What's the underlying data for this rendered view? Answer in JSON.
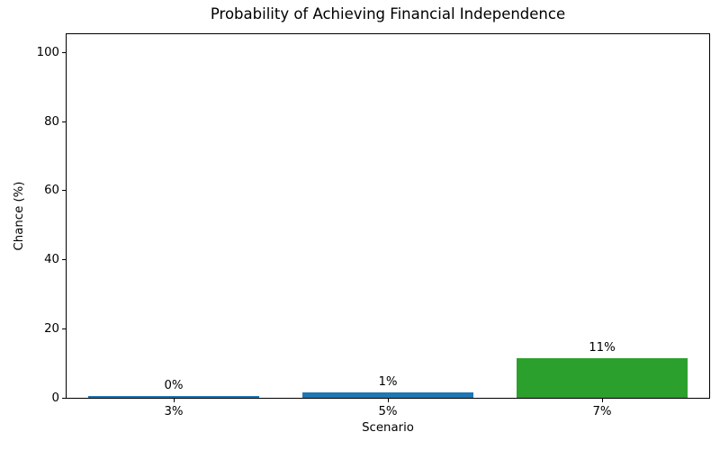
{
  "chart_data": {
    "type": "bar",
    "title": "Probability of Achieving Financial Independence",
    "xlabel": "Scenario",
    "ylabel": "Chance (%)",
    "categories": [
      "3%",
      "5%",
      "7%"
    ],
    "values": [
      0.4,
      1.5,
      11.4
    ],
    "value_labels": [
      "0%",
      "1%",
      "11%"
    ],
    "bar_colors": [
      "#1f77b4",
      "#1f77b4",
      "#2ca02c"
    ],
    "yticks": [
      0,
      20,
      40,
      60,
      80,
      100
    ],
    "ylim": [
      0,
      105.3
    ],
    "grid": false,
    "legend": null,
    "bar_width_fraction": 0.8,
    "spine_color": "#000000",
    "background_color": "#ffffff"
  }
}
